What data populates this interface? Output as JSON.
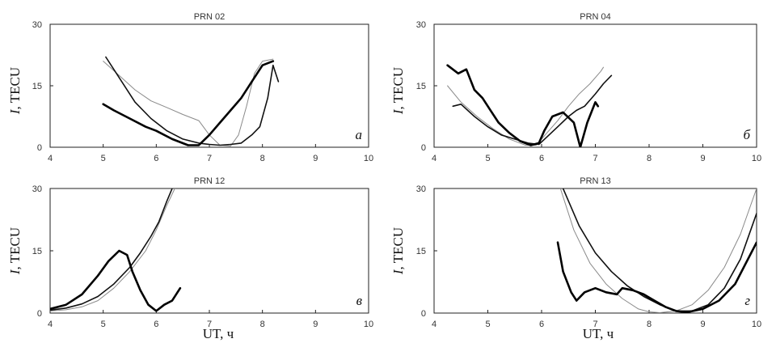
{
  "figure": {
    "y_axis_label_italic": "I",
    "y_axis_label_rest": ", TECU",
    "x_axis_label": "UT, ч"
  },
  "chart_data": [
    {
      "type": "line",
      "title": "PRN 02",
      "panel_letter": "а",
      "xlabel": "",
      "ylabel": "I, TECU",
      "xlim": [
        4,
        10
      ],
      "ylim": [
        0,
        30
      ],
      "xticks": [
        4,
        5,
        6,
        7,
        8,
        9,
        10
      ],
      "yticks": [
        0,
        15,
        30
      ],
      "series": [
        {
          "style": "thin-gray",
          "x": [
            5.0,
            5.3,
            5.6,
            5.9,
            6.2,
            6.5,
            6.8,
            7.0,
            7.2,
            7.4,
            7.55,
            7.7,
            7.85,
            8.0,
            8.2
          ],
          "y": [
            21,
            17.5,
            14,
            11.3,
            9.7,
            8.0,
            6.5,
            3.0,
            0.5,
            0.3,
            3.0,
            10,
            18,
            21,
            21.5
          ]
        },
        {
          "style": "medium-black",
          "x": [
            5.05,
            5.3,
            5.6,
            5.9,
            6.2,
            6.5,
            6.8,
            7.0,
            7.2,
            7.4,
            7.6,
            7.8,
            7.95,
            8.1,
            8.2,
            8.3
          ],
          "y": [
            22,
            17,
            11,
            7.0,
            4.0,
            2.0,
            1.0,
            0.7,
            0.5,
            0.7,
            1.0,
            3.0,
            5.0,
            12,
            20,
            16
          ]
        },
        {
          "style": "thick-black",
          "x": [
            5.0,
            5.2,
            5.5,
            5.8,
            6.0,
            6.3,
            6.6,
            6.8,
            7.0,
            7.2,
            7.4,
            7.6,
            7.8,
            8.0,
            8.2
          ],
          "y": [
            10.5,
            9.0,
            7.0,
            5.0,
            4.0,
            2.0,
            0.5,
            0.5,
            3.0,
            6.0,
            9.0,
            12,
            16,
            20,
            21
          ]
        }
      ]
    },
    {
      "type": "line",
      "title": "PRN 04",
      "panel_letter": "б",
      "xlabel": "",
      "ylabel": "I, TECU",
      "xlim": [
        4,
        10
      ],
      "ylim": [
        0,
        30
      ],
      "xticks": [
        4,
        5,
        6,
        7,
        8,
        9,
        10
      ],
      "yticks": [
        0,
        15,
        30
      ],
      "series": [
        {
          "style": "thin-gray",
          "x": [
            4.25,
            4.5,
            4.8,
            5.1,
            5.4,
            5.7,
            5.9,
            6.1,
            6.3,
            6.5,
            6.7,
            6.9,
            7.1,
            7.15
          ],
          "y": [
            15,
            11,
            7.5,
            4.5,
            2.0,
            0.5,
            0.5,
            3.5,
            6.5,
            10,
            13,
            15.5,
            18.5,
            19.5
          ]
        },
        {
          "style": "medium-black",
          "x": [
            4.35,
            4.5,
            4.75,
            5.0,
            5.25,
            5.5,
            5.75,
            5.95,
            6.1,
            6.3,
            6.5,
            6.65,
            6.8,
            7.0,
            7.15,
            7.3
          ],
          "y": [
            10,
            10.5,
            7.5,
            5.0,
            3.0,
            2.0,
            1.0,
            0.7,
            2.5,
            5.0,
            7.5,
            9.0,
            10,
            13,
            15.5,
            17.5
          ]
        },
        {
          "style": "thick-black",
          "x": [
            4.25,
            4.45,
            4.6,
            4.75,
            4.9,
            5.05,
            5.2,
            5.4,
            5.6,
            5.8,
            5.95,
            6.05,
            6.2,
            6.4,
            6.6,
            6.72,
            6.85,
            7.0,
            7.05
          ],
          "y": [
            20,
            18,
            19,
            14,
            12,
            9,
            6,
            3.5,
            1.5,
            0.5,
            1.0,
            4.0,
            7.5,
            8.5,
            6,
            0,
            6,
            11,
            10
          ]
        }
      ]
    },
    {
      "type": "line",
      "title": "PRN 12",
      "panel_letter": "в",
      "xlabel": "UT, ч",
      "ylabel": "I, TECU",
      "xlim": [
        4,
        10
      ],
      "ylim": [
        0,
        30
      ],
      "xticks": [
        4,
        5,
        6,
        7,
        8,
        9,
        10
      ],
      "yticks": [
        0,
        15,
        30
      ],
      "series": [
        {
          "style": "thin-gray",
          "x": [
            4.0,
            4.3,
            4.6,
            4.9,
            5.2,
            5.5,
            5.8,
            6.0,
            6.2,
            6.35
          ],
          "y": [
            0.5,
            0.8,
            1.5,
            3.0,
            6.0,
            10,
            15,
            20,
            26,
            30
          ]
        },
        {
          "style": "medium-black",
          "x": [
            4.0,
            4.3,
            4.6,
            4.9,
            5.2,
            5.5,
            5.7,
            5.9,
            6.05,
            6.2,
            6.3
          ],
          "y": [
            0.7,
            1.2,
            2.2,
            4.0,
            7.0,
            11,
            14.5,
            18.5,
            22,
            27,
            30
          ]
        },
        {
          "style": "thick-black",
          "x": [
            4.0,
            4.3,
            4.6,
            4.9,
            5.1,
            5.3,
            5.45,
            5.55,
            5.7,
            5.85,
            6.0,
            6.15,
            6.3,
            6.45
          ],
          "y": [
            1.0,
            2.0,
            4.5,
            9.0,
            12.5,
            15,
            14,
            10,
            5.5,
            2.0,
            0.5,
            2.0,
            3.0,
            6.0
          ]
        }
      ]
    },
    {
      "type": "line",
      "title": "PRN 13",
      "panel_letter": "г",
      "xlabel": "UT, ч",
      "ylabel": "I, TECU",
      "xlim": [
        4,
        10
      ],
      "ylim": [
        0,
        30
      ],
      "xticks": [
        4,
        5,
        6,
        7,
        8,
        9,
        10
      ],
      "yticks": [
        0,
        15,
        30
      ],
      "series": [
        {
          "style": "thin-gray",
          "x": [
            6.35,
            6.6,
            6.9,
            7.2,
            7.5,
            7.8,
            8.0,
            8.2,
            8.5,
            8.8,
            9.1,
            9.4,
            9.7,
            10.0
          ],
          "y": [
            30,
            20,
            12,
            7.0,
            3.5,
            1.0,
            0.3,
            0.1,
            0.5,
            2.0,
            5.5,
            11,
            19,
            30
          ]
        },
        {
          "style": "medium-black",
          "x": [
            6.4,
            6.7,
            7.0,
            7.3,
            7.6,
            7.9,
            8.2,
            8.5,
            8.8,
            9.1,
            9.4,
            9.7,
            10.0
          ],
          "y": [
            30,
            21,
            14.5,
            10,
            6.5,
            4.0,
            2.0,
            0.5,
            0.5,
            2.0,
            6.0,
            13,
            24
          ]
        },
        {
          "style": "thick-black",
          "x": [
            6.3,
            6.4,
            6.55,
            6.65,
            6.8,
            7.0,
            7.2,
            7.4,
            7.5,
            7.7,
            7.9,
            8.1,
            8.3,
            8.5,
            8.7,
            9.0,
            9.3,
            9.6,
            10.0
          ],
          "y": [
            17,
            10,
            5.0,
            3.0,
            5.0,
            6.0,
            5.0,
            4.5,
            6.0,
            5.5,
            4.5,
            3.0,
            1.5,
            0.5,
            0.2,
            1.0,
            3.0,
            7.0,
            17
          ]
        }
      ]
    }
  ]
}
